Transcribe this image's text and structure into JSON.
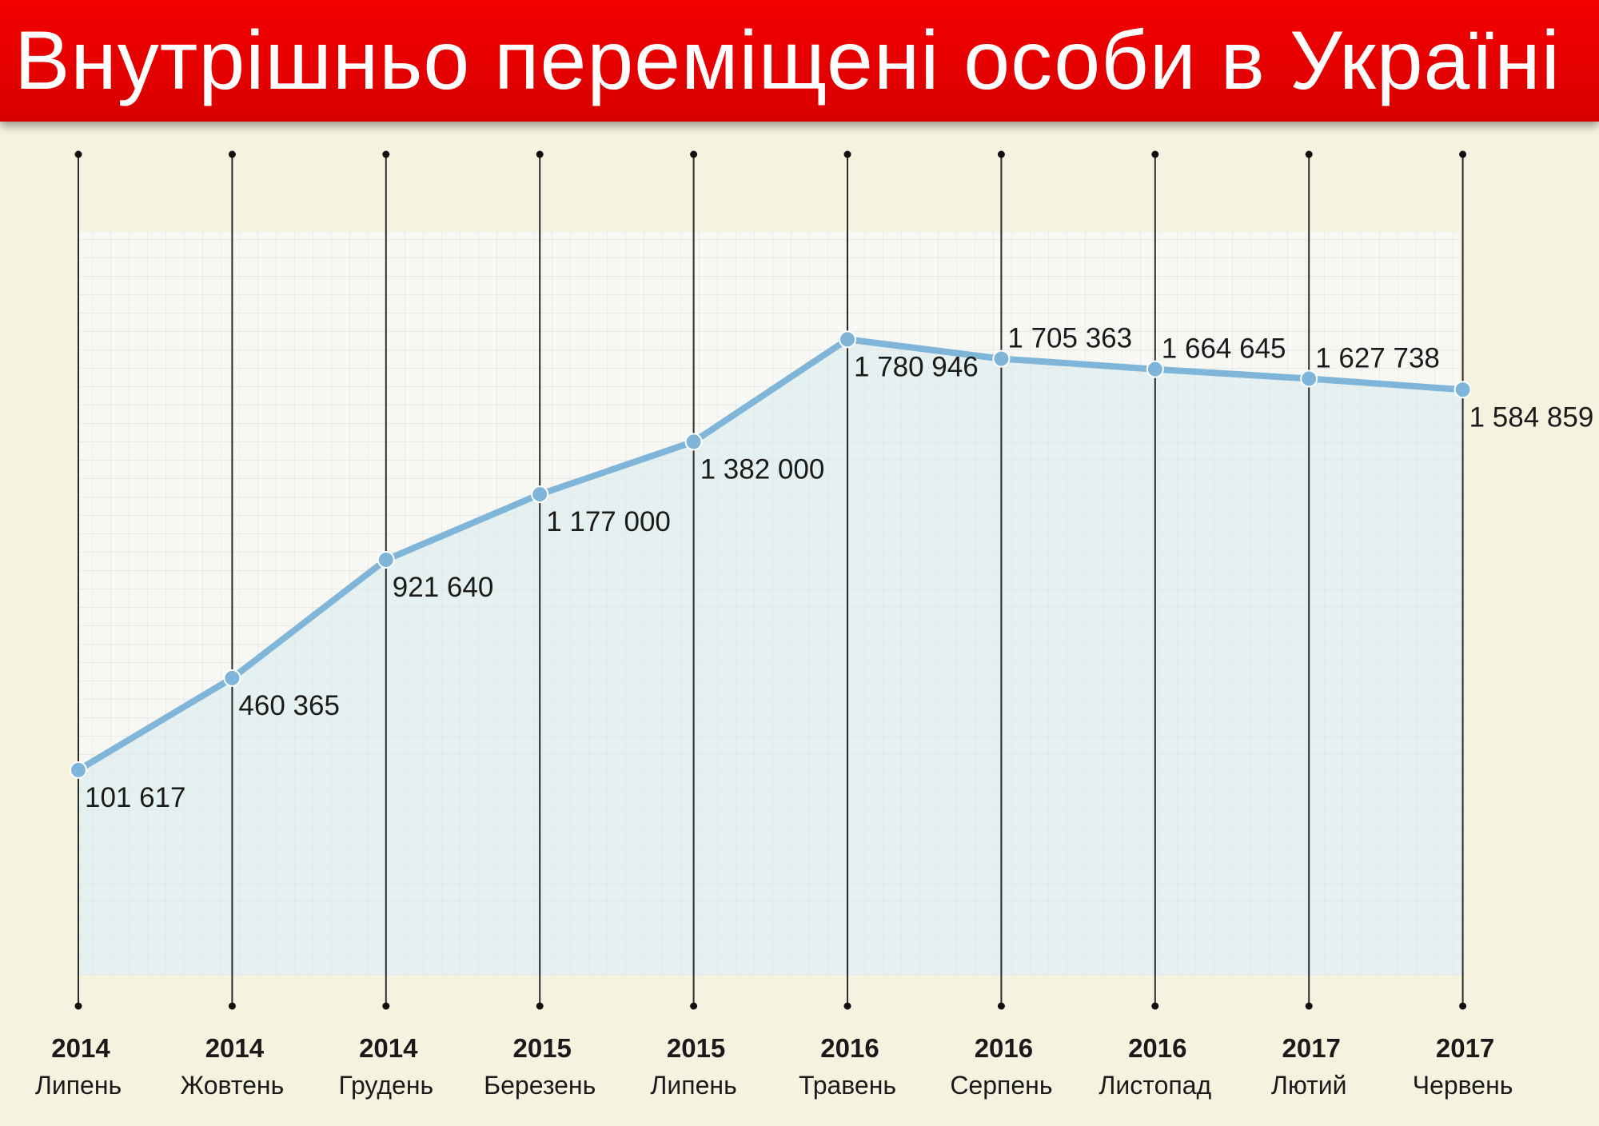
{
  "title": "Внутрішньо переміщені особи в Україні",
  "colors": {
    "header": "#e60000",
    "background": "#f5f3df",
    "line": "#7fb5d8",
    "area": "#e2efef",
    "grid_panel": "#f7f7f4"
  },
  "chart_data": {
    "type": "line",
    "title": "Внутрішньо переміщені особи в Україні",
    "xlabel": "",
    "ylabel": "",
    "ylim": [
      -700000,
      2200000
    ],
    "grid": true,
    "categories": [
      {
        "year": "2014",
        "month": "Липень"
      },
      {
        "year": "2014",
        "month": "Жовтень"
      },
      {
        "year": "2014",
        "month": "Грудень"
      },
      {
        "year": "2015",
        "month": "Березень"
      },
      {
        "year": "2015",
        "month": "Липень"
      },
      {
        "year": "2016",
        "month": "Травень"
      },
      {
        "year": "2016",
        "month": "Серпень"
      },
      {
        "year": "2016",
        "month": "Листопад"
      },
      {
        "year": "2017",
        "month": "Лютий"
      },
      {
        "year": "2017",
        "month": "Червень"
      }
    ],
    "series": [
      {
        "name": "Внутрішньо переміщені особи",
        "values": [
          101617,
          460365,
          921640,
          1177000,
          1382000,
          1780946,
          1705363,
          1664645,
          1627738,
          1584859
        ],
        "labels": [
          "101 617",
          "460 365",
          "921 640",
          "1 177 000",
          "1 382 000",
          "1 780 946",
          "1 705 363",
          "1 664 645",
          "1 627 738",
          "1 584 859"
        ],
        "label_positions": [
          "below",
          "below",
          "below",
          "below",
          "below",
          "below",
          "above",
          "above",
          "above",
          "below"
        ]
      }
    ]
  }
}
